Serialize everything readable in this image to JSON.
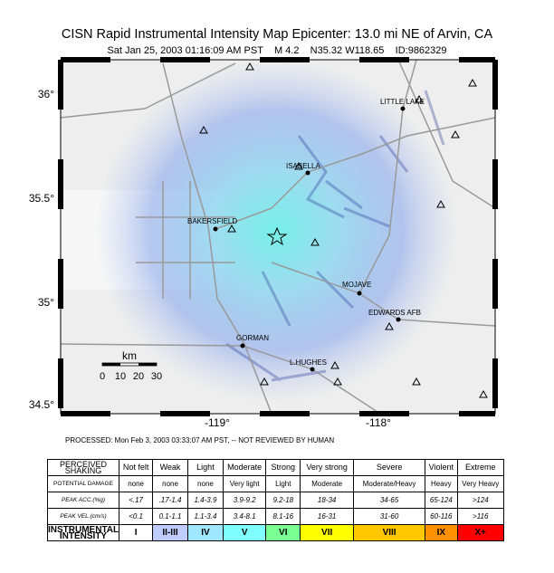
{
  "header": {
    "title": "CISN Rapid Instrumental Intensity Map Epicenter: 13.0 mi NE of Arvin, CA",
    "subtitle": "Sat Jan 25, 2003 01:16:09 AM PST    M 4.2    N35.32 W118.65    ID:9862329"
  },
  "map": {
    "lat_labels": [
      "36°",
      "35.5°",
      "35°",
      "34.5°"
    ],
    "lon_labels": [
      "-119°",
      "-118°"
    ],
    "places": [
      "LITTLE LAKE",
      "ISABELLA",
      "BAKERSFIELD",
      "MOJAVE",
      "EDWARDS AFB",
      "GORMAN",
      "L.HUGHES"
    ],
    "scale": {
      "unit": "km",
      "ticks": [
        "0",
        "10",
        "20",
        "30"
      ]
    }
  },
  "processed": "PROCESSED: Mon Feb 3, 2003 03:33:07 AM PST, -- NOT REVIEWED BY HUMAN",
  "legend": {
    "rows": [
      {
        "label": "PERCEIVED SHAKING",
        "cells": [
          "Not felt",
          "Weak",
          "Light",
          "Moderate",
          "Strong",
          "Very strong",
          "Severe",
          "Violent",
          "Extreme"
        ]
      },
      {
        "label": "POTENTIAL DAMAGE",
        "cells": [
          "none",
          "none",
          "none",
          "Very light",
          "Light",
          "Moderate",
          "Moderate/Heavy",
          "Heavy",
          "Very Heavy"
        ]
      },
      {
        "label": "PEAK ACC.(%g)",
        "cells": [
          "<.17",
          ".17-1.4",
          "1.4-3.9",
          "3.9-9.2",
          "9.2-18",
          "18-34",
          "34-65",
          "65-124",
          ">124"
        ]
      },
      {
        "label": "PEAK VEL.(cm/s)",
        "cells": [
          "<0.1",
          "0.1-1.1",
          "1.1-3.4",
          "3.4-8.1",
          "8.1-16",
          "16-31",
          "31-60",
          "60-116",
          ">116"
        ]
      },
      {
        "label": "INSTRUMENTAL INTENSITY",
        "cells": [
          "I",
          "II-III",
          "IV",
          "V",
          "VI",
          "VII",
          "VIII",
          "IX",
          "X+"
        ]
      }
    ],
    "intensity_colors": [
      "#ffffff",
      "#bfccff",
      "#a0e6ff",
      "#80ffff",
      "#7aff93",
      "#ffff00",
      "#ffc800",
      "#ff9100",
      "#ff0000"
    ]
  }
}
